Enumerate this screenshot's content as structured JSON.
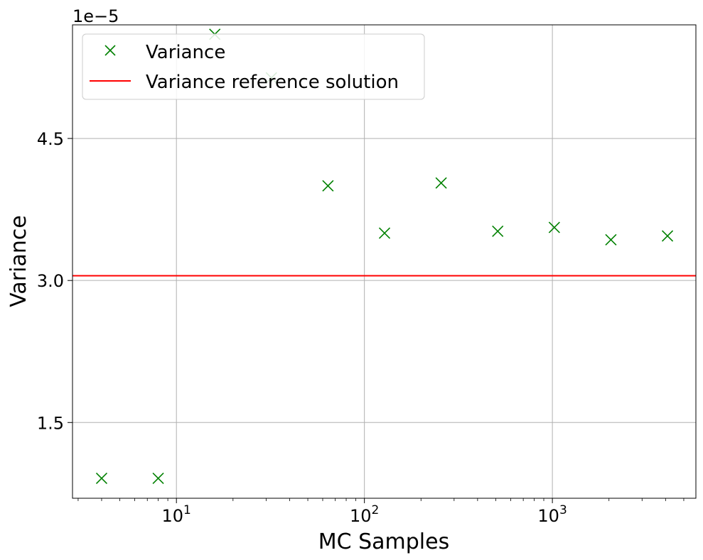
{
  "chart_data": {
    "type": "scatter",
    "xlabel": "MC Samples",
    "ylabel": "Variance",
    "x_scale": "log",
    "xlim": [
      2.8,
      5800
    ],
    "ylim": [
      7e-06,
      5.7e-05
    ],
    "y_offset_label": "1e−5",
    "x_ticks": [
      {
        "value": 10,
        "base": "10",
        "exp": "1"
      },
      {
        "value": 100,
        "base": "10",
        "exp": "2"
      },
      {
        "value": 1000,
        "base": "10",
        "exp": "3"
      }
    ],
    "y_ticks": [
      {
        "value": 1.5e-05,
        "label": "1.5"
      },
      {
        "value": 3e-05,
        "label": "3.0"
      },
      {
        "value": 4.5e-05,
        "label": "4.5"
      }
    ],
    "grid": true,
    "legend_position": "top-left",
    "series": [
      {
        "name": "Variance",
        "kind": "markers",
        "marker": "x",
        "color": "#008000",
        "x": [
          4,
          8,
          16,
          32,
          64,
          128,
          256,
          512,
          1024,
          2048,
          4096
        ],
        "y": [
          9.1e-06,
          9.1e-06,
          5.6e-05,
          5.14e-05,
          4e-05,
          3.5e-05,
          4.03e-05,
          3.52e-05,
          3.56e-05,
          3.43e-05,
          3.47e-05
        ]
      },
      {
        "name": "Variance reference solution",
        "kind": "hline",
        "color": "#ff0000",
        "y": 3.05e-05
      }
    ]
  }
}
